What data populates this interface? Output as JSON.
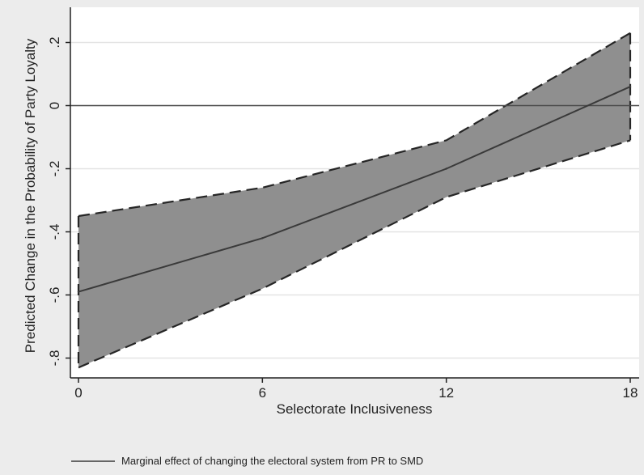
{
  "chart_data": {
    "type": "line",
    "title": "",
    "xlabel": "Selectorate Inclusiveness",
    "ylabel": "Predicted Change in the Probability of Party Loyalty",
    "xlim": [
      0,
      18
    ],
    "ylim": [
      -0.85,
      0.25
    ],
    "x_ticks": [
      0,
      6,
      12,
      18
    ],
    "x_tick_labels": [
      "0",
      "6",
      "12",
      "18"
    ],
    "y_ticks": [
      -0.8,
      -0.6,
      -0.4,
      -0.2,
      0,
      0.2
    ],
    "y_tick_labels": [
      "-.8",
      "-.6",
      "-.4",
      "-.2",
      "0",
      ".2"
    ],
    "grid": "horizontal",
    "reference_line_y": 0,
    "x": [
      0,
      6,
      12,
      18
    ],
    "series": [
      {
        "name": "Marginal effect of changing the electoral system from PR to SMD",
        "values": [
          -0.59,
          -0.42,
          -0.2,
          0.06
        ]
      }
    ],
    "confidence_band": {
      "upper": [
        -0.35,
        -0.26,
        -0.11,
        0.23
      ],
      "lower": [
        -0.83,
        -0.58,
        -0.29,
        -0.11
      ]
    },
    "legend_position": "bottom",
    "colors": {
      "background": "#ececec",
      "plot_background": "#ffffff",
      "band_fill": "#8f8f8f",
      "line": "#3a3a3a",
      "gridline": "#e4e4e4"
    }
  },
  "legend": {
    "label": "Marginal effect of changing the electoral system from PR to SMD"
  }
}
